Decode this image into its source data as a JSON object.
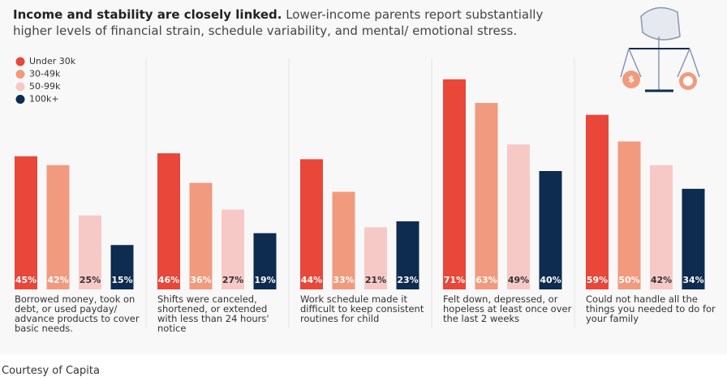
{
  "chart_data": {
    "type": "bar",
    "title": "Income and stability are closely linked.",
    "subtitle": "Lower-income parents report substantially higher levels of financial strain, schedule variability, and mental/ emotional stress.",
    "caption": "Courtesy of Capita",
    "categories": [
      "Borrowed money, took on debt, or used payday/ advance products to cover basic needs.",
      "Shifts were canceled, shortened, or extended with less than 24 hours' notice",
      "Work schedule made it difficult to keep consistent routines for child",
      "Felt down, depressed, or hopeless at least once over the last 2 weeks",
      "Could not handle all the things you needed to do for your family"
    ],
    "series": [
      {
        "name": "Under 30k",
        "color": "#e8473a",
        "values": [
          45,
          46,
          44,
          71,
          59
        ],
        "value_labels": [
          "45%",
          "46%",
          "44%",
          "71%",
          "59%"
        ]
      },
      {
        "name": "30-49k",
        "color": "#f29a7e",
        "values": [
          42,
          36,
          33,
          63,
          50
        ],
        "value_labels": [
          "42%",
          "36%",
          "33%",
          "63%",
          "50%"
        ]
      },
      {
        "name": "50-99k",
        "color": "#f7c9c6",
        "values": [
          25,
          27,
          21,
          49,
          42
        ],
        "value_labels": [
          "25%",
          "27%",
          "21%",
          "49%",
          "42%"
        ]
      },
      {
        "name": "100k+",
        "color": "#0e2b50",
        "values": [
          15,
          19,
          23,
          40,
          34
        ],
        "value_labels": [
          "15%",
          "19%",
          "23%",
          "40%",
          "34%"
        ]
      }
    ],
    "legend": "upper left"
  }
}
